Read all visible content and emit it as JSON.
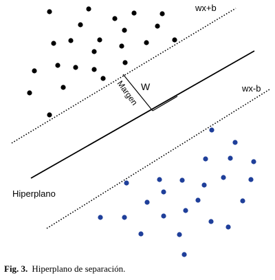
{
  "labels": {
    "upper_margin": "wx+b",
    "lower_margin": "wx-b",
    "hyperplane": "Hiperplano",
    "weight": "W",
    "margin": "Margen"
  },
  "caption": {
    "number": "Fig. 3.",
    "text": "Hiperplano de separación."
  },
  "colors": {
    "class_a": "#000000",
    "class_b": "#1f3f9a",
    "lines": "#000000"
  }
}
